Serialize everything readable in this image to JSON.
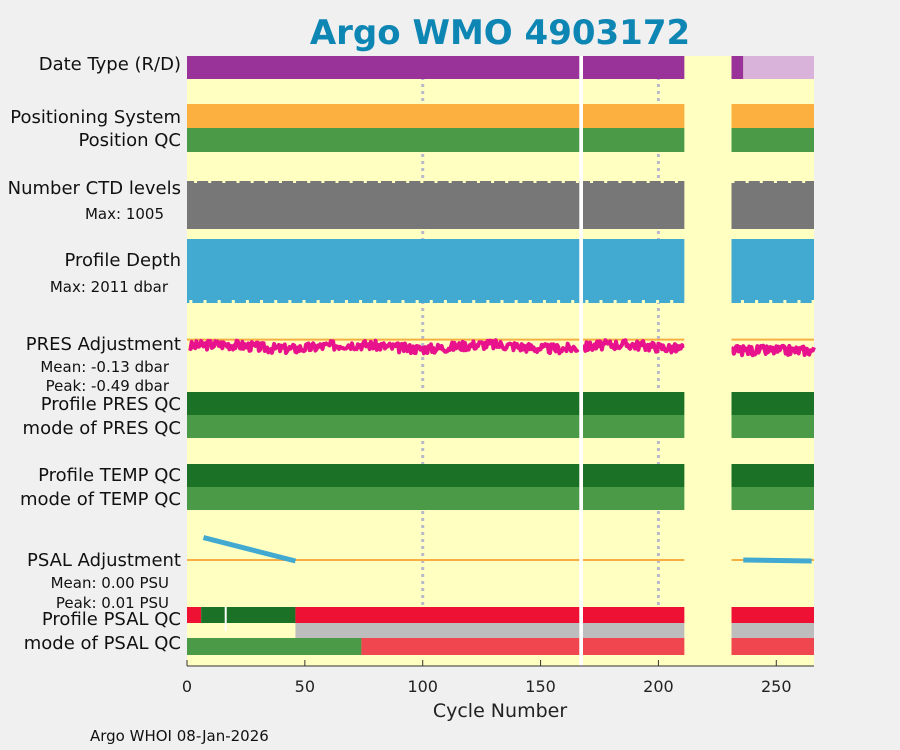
{
  "chart_data": {
    "type": "timeline-panels",
    "title": "Argo WMO 4903172",
    "xlabel": "Cycle Number",
    "xlim": [
      0,
      266
    ],
    "xticks": [
      "0",
      "50",
      "100",
      "150",
      "200",
      "250"
    ],
    "xtick_values": [
      0,
      50,
      100,
      150,
      200,
      250
    ],
    "grid_x": [
      100,
      200
    ],
    "gaps": [
      [
        166,
        168
      ],
      [
        211,
        231
      ]
    ],
    "rows": [
      {
        "key": "date_type",
        "label": "Date Type (R/D)",
        "segments": [
          {
            "from": 0,
            "to": 236,
            "color": "#993399"
          },
          {
            "from": 236,
            "to": 266,
            "color": "#d9b3d9"
          }
        ]
      },
      {
        "key": "positioning_system",
        "label": "Positioning System",
        "segments": [
          {
            "from": 0,
            "to": 266,
            "color": "#fbb040"
          }
        ]
      },
      {
        "key": "position_qc",
        "label": "Position QC",
        "segments": [
          {
            "from": 0,
            "to": 266,
            "color": "#4a9a48"
          }
        ]
      },
      {
        "key": "ctd_levels",
        "label": "Number CTD levels",
        "sublabel": "Max: 1005",
        "max_value": 1005,
        "segments": [
          {
            "from": 0,
            "to": 266,
            "color": "#777777"
          }
        ]
      },
      {
        "key": "profile_depth",
        "label": "Profile Depth",
        "sublabel": "Max: 2011 dbar",
        "max_value": 2011,
        "segments": [
          {
            "from": 0,
            "to": 266,
            "color": "#42a9d0"
          }
        ]
      },
      {
        "key": "profile_pres_qc",
        "label": "Profile PRES QC",
        "segments": [
          {
            "from": 0,
            "to": 266,
            "color": "#1b7126"
          }
        ]
      },
      {
        "key": "mode_pres_qc",
        "label": "mode of PRES QC",
        "segments": [
          {
            "from": 0,
            "to": 266,
            "color": "#4a9a48"
          }
        ]
      },
      {
        "key": "profile_temp_qc",
        "label": "Profile TEMP QC",
        "segments": [
          {
            "from": 0,
            "to": 266,
            "color": "#1b7126"
          }
        ]
      },
      {
        "key": "mode_temp_qc",
        "label": "mode of TEMP QC",
        "segments": [
          {
            "from": 0,
            "to": 266,
            "color": "#4a9a48"
          }
        ]
      },
      {
        "key": "profile_psal_qc",
        "label": "Profile PSAL QC",
        "segments": [
          {
            "from": 0,
            "to": 6,
            "color": "#ee1133"
          },
          {
            "from": 6,
            "to": 46,
            "color": "#1b7126"
          },
          {
            "from": 46,
            "to": 266,
            "color": "#ee1133"
          }
        ]
      },
      {
        "key": "mode_psal_qc",
        "label": "mode of PSAL QC",
        "segments": [
          {
            "from": 0,
            "to": 74,
            "color": "#4a9a48"
          },
          {
            "from": 74,
            "to": 266,
            "color": "#f0464f"
          }
        ]
      }
    ],
    "pres_adjustment": {
      "label": "PRES Adjustment",
      "mean_label": "Mean: -0.13 dbar",
      "peak_label": "Peak: -0.49 dbar",
      "mean": -0.13,
      "peak": -0.49,
      "ylim": [
        -0.6,
        0.4
      ],
      "color": "#e8128c",
      "zero_line_color": "#f5b041",
      "spans": [
        [
          1,
          166
        ],
        [
          168,
          211
        ],
        [
          231,
          266
        ]
      ]
    },
    "psal_adjustment": {
      "label": "PSAL Adjustment",
      "mean_label": "Mean: 0.00 PSU",
      "peak_label": "Peak: 0.01 PSU",
      "ylim": [
        -0.01,
        0.01
      ],
      "color": "#42a9d0",
      "zero_line_color": "#f5b041",
      "lines": [
        {
          "x": [
            7,
            46
          ],
          "y": [
            0.008,
            0.0
          ]
        },
        {
          "x": [
            236,
            265
          ],
          "y": [
            0.0,
            0.0
          ]
        }
      ]
    },
    "footer": "Argo WHOI 08-Jan-2026",
    "colors": {
      "title": "#0e86b4",
      "background": "#ffffc2",
      "sub_cyan": "#0e86b4",
      "sub_magenta": "#e8128c",
      "grid": "#b9b9cc"
    }
  }
}
